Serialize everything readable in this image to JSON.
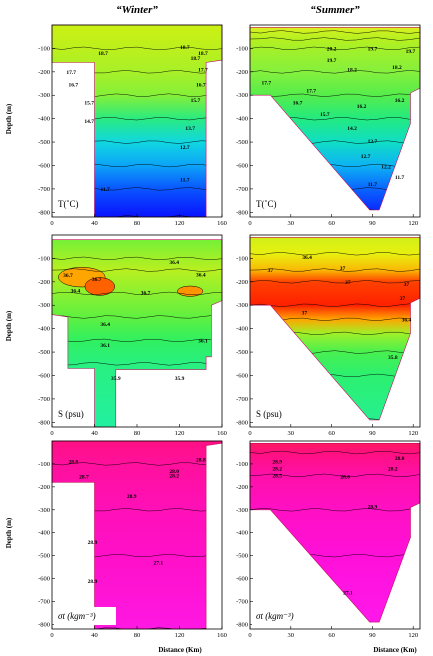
{
  "figure": {
    "winter_label": "“Winter”",
    "summer_label": "“Summer”",
    "ylabel": "Depth (m)",
    "xlabel": "Distance (Km)"
  },
  "chart_data": [
    {
      "type": "heatmap",
      "column": "Winter",
      "variable": "T (°C)",
      "param_label": "T(˚C)",
      "xlim": [
        0,
        160
      ],
      "ylim": [
        -820,
        0
      ],
      "x_ticks": [
        0,
        40,
        80,
        120,
        160
      ],
      "y_ticks": [
        -100,
        -200,
        -300,
        -400,
        -500,
        -600,
        -700,
        -800
      ],
      "section_outline": [
        [
          0,
          0
        ],
        [
          160,
          0
        ],
        [
          160,
          -150
        ],
        [
          145,
          -160
        ],
        [
          145,
          -820
        ],
        [
          40,
          -820
        ],
        [
          40,
          -160
        ],
        [
          0,
          -160
        ]
      ],
      "color_stops": [
        [
          11.0,
          "#0a12ff"
        ],
        [
          12.5,
          "#0a8fff"
        ],
        [
          13.5,
          "#10d6e6"
        ],
        [
          15.0,
          "#10e8a0"
        ],
        [
          16.5,
          "#50f050"
        ],
        [
          18.0,
          "#a8f028"
        ],
        [
          19.0,
          "#d0f010"
        ]
      ],
      "layers": [
        [
          -20,
          18.8
        ],
        [
          -100,
          18.5
        ],
        [
          -200,
          18.0
        ],
        [
          -300,
          17.4
        ],
        [
          -400,
          15.6
        ],
        [
          -500,
          13.6
        ],
        [
          -600,
          12.8
        ],
        [
          -700,
          11.8
        ],
        [
          -820,
          11.0
        ]
      ],
      "contour_labels": [
        {
          "text": "18.7",
          "x": 125,
          "y": -95
        },
        {
          "text": "18.7",
          "x": 48,
          "y": -120
        },
        {
          "text": "18.7",
          "x": 142,
          "y": -120
        },
        {
          "text": "18.7",
          "x": 135,
          "y": -140
        },
        {
          "text": "17.7",
          "x": 18,
          "y": -200
        },
        {
          "text": "17.7",
          "x": 142,
          "y": -190
        },
        {
          "text": "16.7",
          "x": 20,
          "y": -255
        },
        {
          "text": "16.7",
          "x": 140,
          "y": -255
        },
        {
          "text": "15.7",
          "x": 35,
          "y": -330
        },
        {
          "text": "15.7",
          "x": 135,
          "y": -320
        },
        {
          "text": "14.7",
          "x": 35,
          "y": -410
        },
        {
          "text": "13.7",
          "x": 130,
          "y": -440
        },
        {
          "text": "12.7",
          "x": 125,
          "y": -520
        },
        {
          "text": "11.7",
          "x": 50,
          "y": -700
        },
        {
          "text": "11.7",
          "x": 125,
          "y": -660
        }
      ]
    },
    {
      "type": "heatmap",
      "column": "Summer",
      "variable": "T (°C)",
      "param_label": "T(˚C)",
      "xlim": [
        0,
        125
      ],
      "ylim": [
        -820,
        0
      ],
      "x_ticks": [
        0,
        30,
        60,
        90,
        120
      ],
      "y_ticks": [
        -100,
        -200,
        -300,
        -400,
        -500,
        -600,
        -700,
        -800
      ],
      "section_outline": [
        [
          0,
          -10
        ],
        [
          125,
          -10
        ],
        [
          125,
          -270
        ],
        [
          118,
          -290
        ],
        [
          118,
          -420
        ],
        [
          95,
          -790
        ],
        [
          88,
          -790
        ],
        [
          15,
          -300
        ],
        [
          0,
          -300
        ]
      ],
      "color_stops": [
        [
          11.0,
          "#0a12ff"
        ],
        [
          12.5,
          "#0a8fff"
        ],
        [
          13.5,
          "#10d6e6"
        ],
        [
          15.0,
          "#10e8a0"
        ],
        [
          16.5,
          "#40ec50"
        ],
        [
          18.0,
          "#80f040"
        ],
        [
          20.0,
          "#b0f020"
        ],
        [
          24.0,
          "#e0f020"
        ]
      ],
      "layers": [
        [
          -10,
          24.0
        ],
        [
          -30,
          22.0
        ],
        [
          -60,
          20.5
        ],
        [
          -100,
          19.5
        ],
        [
          -200,
          18.2
        ],
        [
          -300,
          17.0
        ],
        [
          -400,
          15.6
        ],
        [
          -500,
          14.2
        ],
        [
          -600,
          13.0
        ],
        [
          -700,
          12.0
        ],
        [
          -790,
          11.3
        ]
      ],
      "contour_labels": [
        {
          "text": "20.2",
          "x": 60,
          "y": -100
        },
        {
          "text": "19.7",
          "x": 60,
          "y": -150
        },
        {
          "text": "19.7",
          "x": 90,
          "y": -100
        },
        {
          "text": "19.7",
          "x": 118,
          "y": -110
        },
        {
          "text": "18.2",
          "x": 75,
          "y": -190
        },
        {
          "text": "18.2",
          "x": 108,
          "y": -180
        },
        {
          "text": "17.7",
          "x": 12,
          "y": -245
        },
        {
          "text": "17.7",
          "x": 45,
          "y": -280
        },
        {
          "text": "16.7",
          "x": 35,
          "y": -330
        },
        {
          "text": "16.2",
          "x": 82,
          "y": -345
        },
        {
          "text": "16.2",
          "x": 110,
          "y": -320
        },
        {
          "text": "15.7",
          "x": 55,
          "y": -380
        },
        {
          "text": "14.2",
          "x": 75,
          "y": -440
        },
        {
          "text": "13.7",
          "x": 90,
          "y": -495
        },
        {
          "text": "12.7",
          "x": 85,
          "y": -560
        },
        {
          "text": "12.2",
          "x": 100,
          "y": -605
        },
        {
          "text": "11.7",
          "x": 90,
          "y": -680
        },
        {
          "text": "11.7",
          "x": 110,
          "y": -650
        }
      ]
    },
    {
      "type": "heatmap",
      "column": "Winter",
      "variable": "S (psu)",
      "param_label": "S (psu)",
      "xlim": [
        0,
        160
      ],
      "ylim": [
        -820,
        0
      ],
      "x_ticks": [
        0,
        40,
        80,
        120,
        160
      ],
      "y_ticks": [
        -100,
        -200,
        -300,
        -400,
        -500,
        -600,
        -700,
        -800
      ],
      "section_outline": [
        [
          0,
          -20
        ],
        [
          160,
          -20
        ],
        [
          160,
          -280
        ],
        [
          150,
          -300
        ],
        [
          150,
          -520
        ],
        [
          145,
          -520
        ],
        [
          145,
          -575
        ],
        [
          60,
          -575
        ],
        [
          60,
          -820
        ],
        [
          40,
          -820
        ],
        [
          40,
          -570
        ],
        [
          15,
          -570
        ],
        [
          15,
          -350
        ],
        [
          0,
          -340
        ]
      ],
      "color_stops": [
        [
          35.9,
          "#22f0a0"
        ],
        [
          36.1,
          "#30f060"
        ],
        [
          36.3,
          "#60f040"
        ],
        [
          36.45,
          "#a0f028"
        ],
        [
          36.6,
          "#e8f010"
        ],
        [
          36.8,
          "#ffa500"
        ],
        [
          37.0,
          "#ff6000"
        ]
      ],
      "layers": [
        [
          -20,
          36.35
        ],
        [
          -100,
          36.45
        ],
        [
          -150,
          36.5
        ],
        [
          -250,
          36.4
        ],
        [
          -350,
          36.3
        ],
        [
          -450,
          36.1
        ],
        [
          -550,
          36.0
        ],
        [
          -820,
          35.9
        ]
      ],
      "patches": [
        {
          "cx": 28,
          "cy": -180,
          "rx": 22,
          "ry": 42,
          "value": 36.8
        },
        {
          "cx": 45,
          "cy": -220,
          "rx": 14,
          "ry": 38,
          "value": 37.0
        },
        {
          "cx": 130,
          "cy": -240,
          "rx": 12,
          "ry": 22,
          "value": 36.85
        }
      ],
      "contour_labels": [
        {
          "text": "36.7",
          "x": 15,
          "y": -170
        },
        {
          "text": "36.7",
          "x": 42,
          "y": -188
        },
        {
          "text": "36.4",
          "x": 22,
          "y": -238
        },
        {
          "text": "36.7",
          "x": 88,
          "y": -245
        },
        {
          "text": "36.4",
          "x": 115,
          "y": -115
        },
        {
          "text": "36.4",
          "x": 140,
          "y": -168
        },
        {
          "text": "36.4",
          "x": 50,
          "y": -380
        },
        {
          "text": "36.1",
          "x": 50,
          "y": -470
        },
        {
          "text": "36.1",
          "x": 142,
          "y": -450
        },
        {
          "text": "35.9",
          "x": 60,
          "y": -610
        },
        {
          "text": "35.9",
          "x": 120,
          "y": -610
        }
      ]
    },
    {
      "type": "heatmap",
      "column": "Summer",
      "variable": "S (psu)",
      "param_label": "S (psu)",
      "xlim": [
        0,
        125
      ],
      "ylim": [
        -820,
        0
      ],
      "x_ticks": [
        0,
        30,
        60,
        90,
        120
      ],
      "y_ticks": [
        -100,
        -200,
        -300,
        -400,
        -500,
        -600,
        -700,
        -800
      ],
      "section_outline": [
        [
          0,
          -10
        ],
        [
          125,
          -10
        ],
        [
          125,
          -270
        ],
        [
          118,
          -290
        ],
        [
          118,
          -420
        ],
        [
          95,
          -790
        ],
        [
          88,
          -790
        ],
        [
          15,
          -300
        ],
        [
          0,
          -300
        ]
      ],
      "color_stops": [
        [
          35.9,
          "#22f0a0"
        ],
        [
          36.1,
          "#30f060"
        ],
        [
          36.3,
          "#60f040"
        ],
        [
          36.45,
          "#a0f028"
        ],
        [
          36.6,
          "#e8f010"
        ],
        [
          36.8,
          "#ffa500"
        ],
        [
          37.0,
          "#ff2000"
        ]
      ],
      "layers": [
        [
          -10,
          36.55
        ],
        [
          -80,
          36.6
        ],
        [
          -150,
          36.75
        ],
        [
          -200,
          36.95
        ],
        [
          -300,
          37.05
        ],
        [
          -360,
          36.8
        ],
        [
          -420,
          36.45
        ],
        [
          -500,
          36.2
        ],
        [
          -600,
          36.05
        ],
        [
          -790,
          35.95
        ]
      ],
      "contour_labels": [
        {
          "text": "36.4",
          "x": 42,
          "y": -95
        },
        {
          "text": "37",
          "x": 15,
          "y": -150
        },
        {
          "text": "37",
          "x": 68,
          "y": -142
        },
        {
          "text": "37",
          "x": 72,
          "y": -200
        },
        {
          "text": "37",
          "x": 115,
          "y": -210
        },
        {
          "text": "37",
          "x": 112,
          "y": -270
        },
        {
          "text": "37",
          "x": 40,
          "y": -330
        },
        {
          "text": "36.4",
          "x": 115,
          "y": -360
        },
        {
          "text": "35.8",
          "x": 105,
          "y": -520
        }
      ]
    },
    {
      "type": "heatmap",
      "column": "Winter",
      "variable": "σt (kg m⁻³)",
      "param_label": "σt (kgm⁻³)",
      "xlim": [
        0,
        160
      ],
      "ylim": [
        -820,
        0
      ],
      "x_ticks": [
        0,
        40,
        80,
        120,
        160
      ],
      "y_ticks": [
        -100,
        -200,
        -300,
        -400,
        -500,
        -600,
        -700,
        -800
      ],
      "section_outline": [
        [
          0,
          0
        ],
        [
          160,
          0
        ],
        [
          160,
          -10
        ],
        [
          145,
          -20
        ],
        [
          145,
          -820
        ],
        [
          40,
          -820
        ],
        [
          40,
          -180
        ],
        [
          0,
          -180
        ]
      ],
      "color_stops": [
        [
          25.0,
          "#ff2050"
        ],
        [
          26.0,
          "#ff1078"
        ],
        [
          26.8,
          "#ff10a8"
        ],
        [
          27.1,
          "#ff10c8"
        ],
        [
          27.3,
          "#ff20ff"
        ]
      ],
      "layers": [
        [
          0,
          26.2
        ],
        [
          -100,
          26.6
        ],
        [
          -300,
          26.95
        ],
        [
          -500,
          27.1
        ],
        [
          -820,
          27.2
        ]
      ],
      "contour_labels": [
        {
          "text": "28.8",
          "x": 20,
          "y": -90
        },
        {
          "text": "28.8",
          "x": 140,
          "y": -80
        },
        {
          "text": "28.0",
          "x": 115,
          "y": -130
        },
        {
          "text": "28.2",
          "x": 115,
          "y": -150
        },
        {
          "text": "28.7",
          "x": 30,
          "y": -155
        },
        {
          "text": "28.9",
          "x": 75,
          "y": -240
        },
        {
          "text": "28.9",
          "x": 38,
          "y": -440
        },
        {
          "text": "28.9",
          "x": 38,
          "y": -610
        },
        {
          "text": "27.1",
          "x": 100,
          "y": -530
        }
      ]
    },
    {
      "type": "heatmap",
      "column": "Summer",
      "variable": "σt (kg m⁻³)",
      "param_label": "σt (kgm⁻³)",
      "xlim": [
        0,
        125
      ],
      "ylim": [
        -820,
        0
      ],
      "x_ticks": [
        0,
        30,
        60,
        90,
        120
      ],
      "y_ticks": [
        -100,
        -200,
        -300,
        -400,
        -500,
        -600,
        -700,
        -800
      ],
      "section_outline": [
        [
          0,
          -10
        ],
        [
          125,
          -10
        ],
        [
          125,
          -270
        ],
        [
          118,
          -290
        ],
        [
          118,
          -420
        ],
        [
          95,
          -790
        ],
        [
          88,
          -790
        ],
        [
          15,
          -300
        ],
        [
          0,
          -300
        ]
      ],
      "color_stops": [
        [
          25.0,
          "#ff2050"
        ],
        [
          26.0,
          "#ff1078"
        ],
        [
          26.8,
          "#ff10b0"
        ],
        [
          27.1,
          "#ff10d8"
        ],
        [
          27.3,
          "#ff20ff"
        ]
      ],
      "layers": [
        [
          -10,
          25.4
        ],
        [
          -50,
          26.1
        ],
        [
          -150,
          26.7
        ],
        [
          -300,
          26.95
        ],
        [
          -500,
          27.1
        ],
        [
          -790,
          27.2
        ]
      ],
      "contour_labels": [
        {
          "text": "28.9",
          "x": 20,
          "y": -90
        },
        {
          "text": "28.0",
          "x": 110,
          "y": -75
        },
        {
          "text": "28.2",
          "x": 20,
          "y": -120
        },
        {
          "text": "28.2",
          "x": 105,
          "y": -120
        },
        {
          "text": "28.5",
          "x": 20,
          "y": -150
        },
        {
          "text": "28.6",
          "x": 70,
          "y": -155
        },
        {
          "text": "28.9",
          "x": 90,
          "y": -285
        },
        {
          "text": "27.1",
          "x": 72,
          "y": -660
        }
      ]
    }
  ]
}
